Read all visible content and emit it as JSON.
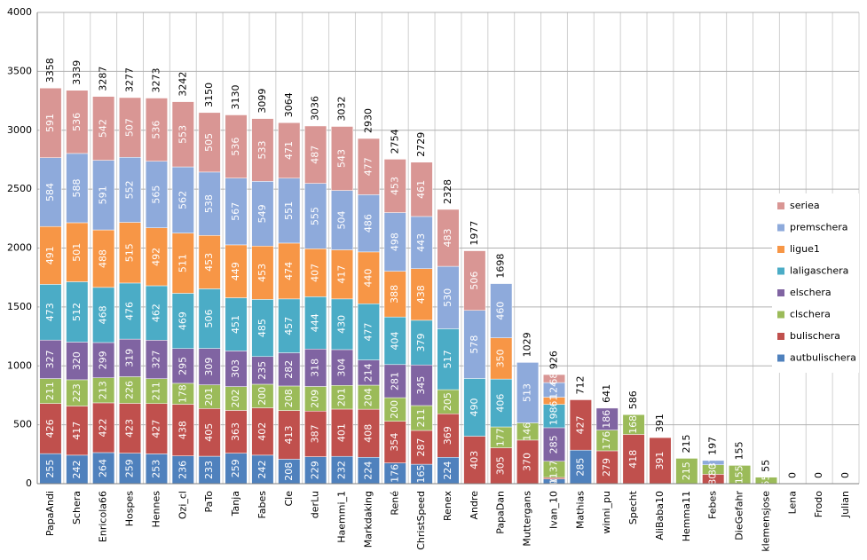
{
  "chart_data": {
    "type": "stacked_bar",
    "categories": [
      "PapaAndi",
      "Schera",
      "Enricola66",
      "Hospes",
      "Hennes",
      "Ozi_cl",
      "PaTo",
      "Tanja",
      "Fabes",
      "Cle",
      "derLu",
      "Haemmi_1",
      "Markdaking",
      "René",
      "ChristSpeed",
      "Renex",
      "Andre",
      "PapaDan",
      "Muttergans",
      "Ivan_10",
      "Mathias",
      "winni_pu",
      "Specht",
      "AliBaba10",
      "Hemma11",
      "Febes",
      "DieGefahr",
      "klemensjose",
      "Lena",
      "Frodo",
      "Julian"
    ],
    "totals": [
      3358,
      3339,
      3287,
      3277,
      3273,
      3242,
      3150,
      3130,
      3099,
      3064,
      3036,
      3032,
      2930,
      2754,
      2729,
      2328,
      1977,
      1698,
      1029,
      926,
      712,
      641,
      586,
      391,
      215,
      197,
      155,
      55,
      0,
      0,
      0
    ],
    "series": [
      {
        "name": "autbulischera",
        "color": "#4f81bd",
        "values": [
          255,
          242,
          264,
          259,
          253,
          236,
          233,
          259,
          242,
          208,
          229,
          232,
          224,
          176,
          165,
          224,
          0,
          0,
          0,
          40,
          285,
          0,
          0,
          0,
          0,
          0,
          0,
          0,
          0,
          0,
          0
        ]
      },
      {
        "name": "bulischera",
        "color": "#c0504d",
        "values": [
          426,
          417,
          422,
          423,
          427,
          438,
          405,
          363,
          402,
          413,
          387,
          401,
          408,
          354,
          287,
          369,
          403,
          305,
          370,
          13,
          427,
          279,
          418,
          391,
          0,
          80,
          0,
          0,
          0,
          0,
          0
        ]
      },
      {
        "name": "clschera",
        "color": "#9bbb59",
        "values": [
          211,
          223,
          213,
          226,
          211,
          178,
          201,
          202,
          200,
          208,
          209,
          201,
          204,
          200,
          211,
          205,
          0,
          177,
          146,
          137,
          0,
          176,
          168,
          0,
          215,
          80,
          155,
          55,
          0,
          0,
          0
        ]
      },
      {
        "name": "elschera",
        "color": "#8064a2",
        "values": [
          327,
          320,
          299,
          319,
          327,
          295,
          309,
          303,
          235,
          282,
          318,
          304,
          214,
          281,
          345,
          0,
          0,
          0,
          0,
          285,
          0,
          186,
          0,
          0,
          0,
          0,
          0,
          0,
          0,
          0,
          0
        ]
      },
      {
        "name": "laligaschera",
        "color": "#4bacc6",
        "values": [
          473,
          512,
          468,
          476,
          462,
          469,
          506,
          451,
          485,
          457,
          444,
          430,
          477,
          404,
          379,
          517,
          490,
          406,
          0,
          198,
          0,
          0,
          0,
          0,
          0,
          0,
          0,
          0,
          0,
          0,
          0
        ]
      },
      {
        "name": "ligue1",
        "color": "#f79646",
        "values": [
          491,
          501,
          488,
          515,
          492,
          511,
          453,
          449,
          453,
          474,
          407,
          417,
          440,
          388,
          438,
          0,
          0,
          350,
          0,
          61,
          0,
          0,
          0,
          0,
          0,
          0,
          0,
          0,
          0,
          0,
          0
        ]
      },
      {
        "name": "premschera",
        "color": "#8eaadb",
        "values": [
          584,
          588,
          591,
          552,
          565,
          562,
          538,
          567,
          549,
          551,
          555,
          504,
          486,
          498,
          443,
          530,
          578,
          460,
          513,
          124,
          0,
          0,
          0,
          0,
          0,
          37,
          0,
          0,
          0,
          0,
          0
        ]
      },
      {
        "name": "seriea",
        "color": "#d99694",
        "values": [
          591,
          536,
          542,
          507,
          536,
          553,
          505,
          536,
          533,
          471,
          487,
          543,
          477,
          453,
          461,
          483,
          506,
          0,
          0,
          68,
          0,
          0,
          0,
          0,
          0,
          0,
          0,
          0,
          0,
          0,
          0
        ]
      }
    ],
    "ylim": [
      0,
      4000
    ],
    "yticks": [
      0,
      500,
      1000,
      1500,
      2000,
      2500,
      3000,
      3500,
      4000
    ],
    "grid": true
  }
}
